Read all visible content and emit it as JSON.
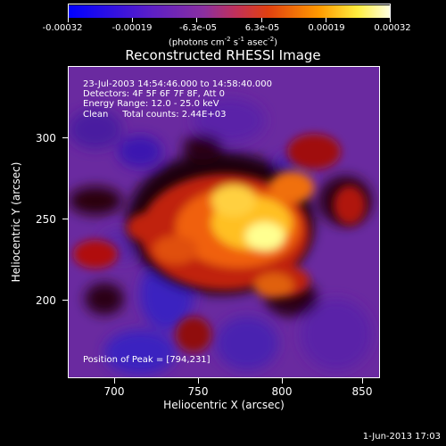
{
  "colorbar": {
    "tick_labels": [
      "-0.00032",
      "-0.00019",
      "-6.3e-05",
      "6.3e-05",
      "0.00019",
      "0.00032"
    ],
    "units_text": "(photons cm",
    "units_parts": [
      "(photons cm",
      "-2",
      " s",
      "-1",
      " asec",
      "-2",
      ")"
    ],
    "colors": [
      "#0000ff",
      "#6b2fb0",
      "#9a3fb0",
      "#d0403f",
      "#f0a020",
      "#ffff80",
      "#ffffff"
    ]
  },
  "title": "Reconstructed RHESSI Image",
  "info": {
    "time": "23-Jul-2003 14:54:46.000 to 14:58:40.000",
    "detectors": "Detectors: 4F 5F 6F 7F 8F, Att 0",
    "energy": "Energy Range: 12.0 - 25.0 keV",
    "clean": "Clean     Total counts: 2.44E+03"
  },
  "peak": "Position of Peak = [794,231]",
  "axes": {
    "xlabel": "Heliocentric X (arcsec)",
    "ylabel": "Heliocentric Y (arcsec)",
    "xticks": [
      "700",
      "750",
      "800",
      "850"
    ],
    "yticks": [
      "300",
      "250",
      "200"
    ]
  },
  "footer": {
    "date": "1-Jun-2013 17:03"
  }
}
